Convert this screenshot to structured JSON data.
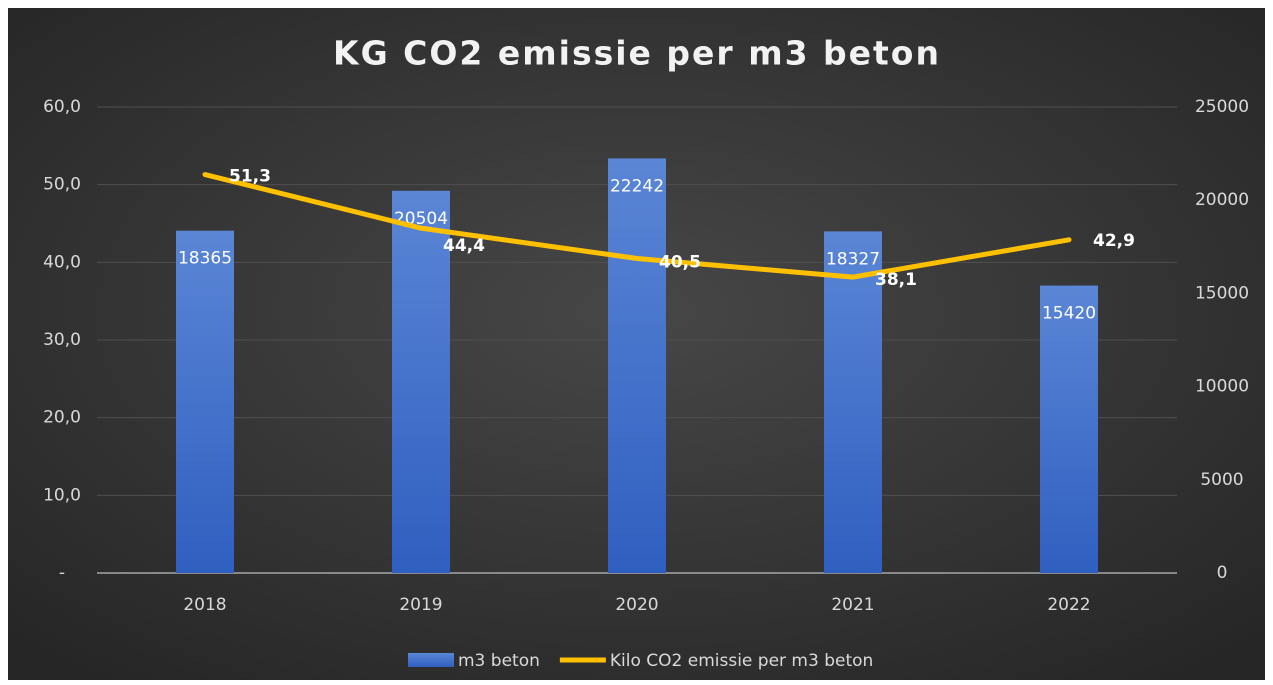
{
  "chart_data": {
    "type": "combo",
    "title": "KG CO2 emissie per m3 beton",
    "categories": [
      "2018",
      "2019",
      "2020",
      "2021",
      "2022"
    ],
    "series": [
      {
        "name": "m3 beton",
        "type": "bar",
        "color": "#4472c4",
        "axis": "y2",
        "values": [
          18365,
          20504,
          22242,
          18327,
          15420
        ]
      },
      {
        "name": "Kilo CO2 emissie per m3 beton",
        "type": "line",
        "color": "#ffc000",
        "values": [
          51.3,
          44.4,
          40.5,
          38.1,
          42.9
        ],
        "value_labels": [
          "51,3",
          "44,4",
          "40,5",
          "38,1",
          "42,9"
        ]
      }
    ],
    "ylim": [
      0,
      60
    ],
    "yticks": [
      {
        "value": 0,
        "label": "-"
      },
      {
        "value": 10,
        "label": "10,0"
      },
      {
        "value": 20,
        "label": "20,0"
      },
      {
        "value": 30,
        "label": "30,0"
      },
      {
        "value": 40,
        "label": "40,0"
      },
      {
        "value": 50,
        "label": "50,0"
      },
      {
        "value": 60,
        "label": "60,0"
      }
    ],
    "y2lim": [
      0,
      25000
    ],
    "y2ticks": [
      0,
      5000,
      10000,
      15000,
      20000,
      25000
    ],
    "grid": true,
    "legend": "bottom"
  }
}
